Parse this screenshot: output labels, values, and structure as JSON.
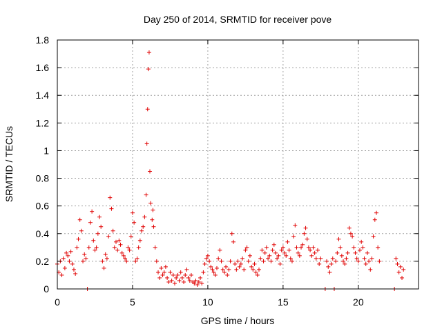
{
  "chart_data": {
    "type": "scatter",
    "title": "Day 250 of 2014, SRMTID for receiver pove",
    "xlabel": "GPS time / hours",
    "ylabel": "SRMTID / TECUs",
    "xlim": [
      0,
      24
    ],
    "ylim": [
      0,
      1.8
    ],
    "xticks": [
      0,
      5,
      10,
      15,
      20
    ],
    "xtick_labels": [
      "0",
      "5",
      "10",
      "15",
      "20"
    ],
    "yticks": [
      0,
      0.2,
      0.4,
      0.6,
      0.8,
      1.0,
      1.2,
      1.4,
      1.6,
      1.8
    ],
    "ytick_labels": [
      "0",
      "0.2",
      "0.4",
      "0.6",
      "0.8",
      "1",
      "1.2",
      "1.4",
      "1.6",
      "1.8"
    ],
    "grid": true,
    "marker": "+",
    "color": "#e00000",
    "series": [
      {
        "name": "SRMTID",
        "points": [
          [
            0.0,
            0.18
          ],
          [
            0.1,
            0.12
          ],
          [
            0.2,
            0.2
          ],
          [
            0.3,
            0.1
          ],
          [
            0.4,
            0.22
          ],
          [
            0.5,
            0.15
          ],
          [
            0.6,
            0.26
          ],
          [
            0.7,
            0.24
          ],
          [
            0.8,
            0.2
          ],
          [
            0.9,
            0.27
          ],
          [
            1.0,
            0.18
          ],
          [
            1.1,
            0.14
          ],
          [
            1.2,
            0.11
          ],
          [
            1.3,
            0.3
          ],
          [
            1.4,
            0.36
          ],
          [
            1.5,
            0.5
          ],
          [
            1.6,
            0.42
          ],
          [
            1.7,
            0.2
          ],
          [
            1.8,
            0.25
          ],
          [
            1.9,
            0.22
          ],
          [
            2.0,
            0.0
          ],
          [
            2.1,
            0.3
          ],
          [
            2.2,
            0.48
          ],
          [
            2.3,
            0.56
          ],
          [
            2.4,
            0.35
          ],
          [
            2.5,
            0.28
          ],
          [
            2.6,
            0.3
          ],
          [
            2.7,
            0.4
          ],
          [
            2.8,
            0.52
          ],
          [
            2.9,
            0.45
          ],
          [
            3.0,
            0.2
          ],
          [
            3.1,
            0.15
          ],
          [
            3.2,
            0.25
          ],
          [
            3.3,
            0.22
          ],
          [
            3.4,
            0.38
          ],
          [
            3.5,
            0.66
          ],
          [
            3.6,
            0.58
          ],
          [
            3.7,
            0.42
          ],
          [
            3.8,
            0.3
          ],
          [
            3.9,
            0.34
          ],
          [
            4.0,
            0.28
          ],
          [
            4.1,
            0.35
          ],
          [
            4.2,
            0.32
          ],
          [
            4.3,
            0.26
          ],
          [
            4.4,
            0.24
          ],
          [
            4.5,
            0.22
          ],
          [
            4.6,
            0.2
          ],
          [
            4.7,
            0.3
          ],
          [
            4.8,
            0.28
          ],
          [
            4.9,
            0.38
          ],
          [
            5.0,
            0.55
          ],
          [
            5.1,
            0.48
          ],
          [
            5.2,
            0.2
          ],
          [
            5.3,
            0.22
          ],
          [
            5.4,
            0.3
          ],
          [
            5.5,
            0.35
          ],
          [
            5.6,
            0.42
          ],
          [
            5.7,
            0.45
          ],
          [
            5.8,
            0.52
          ],
          [
            5.9,
            0.68
          ],
          [
            5.95,
            1.05
          ],
          [
            6.0,
            1.3
          ],
          [
            6.05,
            1.59
          ],
          [
            6.1,
            1.71
          ],
          [
            6.15,
            0.85
          ],
          [
            6.2,
            0.62
          ],
          [
            6.3,
            0.5
          ],
          [
            6.35,
            0.57
          ],
          [
            6.4,
            0.45
          ],
          [
            6.5,
            0.3
          ],
          [
            6.6,
            0.2
          ],
          [
            6.7,
            0.12
          ],
          [
            6.8,
            0.08
          ],
          [
            6.9,
            0.15
          ],
          [
            7.0,
            0.1
          ],
          [
            7.1,
            0.12
          ],
          [
            7.2,
            0.16
          ],
          [
            7.3,
            0.08
          ],
          [
            7.4,
            0.05
          ],
          [
            7.5,
            0.12
          ],
          [
            7.6,
            0.06
          ],
          [
            7.7,
            0.1
          ],
          [
            7.8,
            0.04
          ],
          [
            7.9,
            0.08
          ],
          [
            8.0,
            0.1
          ],
          [
            8.1,
            0.06
          ],
          [
            8.2,
            0.12
          ],
          [
            8.3,
            0.08
          ],
          [
            8.4,
            0.05
          ],
          [
            8.5,
            0.1
          ],
          [
            8.6,
            0.14
          ],
          [
            8.7,
            0.08
          ],
          [
            8.8,
            0.06
          ],
          [
            8.9,
            0.1
          ],
          [
            9.0,
            0.05
          ],
          [
            9.1,
            0.04
          ],
          [
            9.2,
            0.06
          ],
          [
            9.3,
            0.03
          ],
          [
            9.4,
            0.05
          ],
          [
            9.5,
            0.08
          ],
          [
            9.6,
            0.04
          ],
          [
            9.7,
            0.12
          ],
          [
            9.8,
            0.18
          ],
          [
            9.9,
            0.22
          ],
          [
            10.0,
            0.24
          ],
          [
            10.1,
            0.2
          ],
          [
            10.2,
            0.16
          ],
          [
            10.3,
            0.14
          ],
          [
            10.4,
            0.12
          ],
          [
            10.5,
            0.1
          ],
          [
            10.6,
            0.15
          ],
          [
            10.7,
            0.22
          ],
          [
            10.8,
            0.28
          ],
          [
            10.9,
            0.2
          ],
          [
            11.0,
            0.14
          ],
          [
            11.1,
            0.12
          ],
          [
            11.2,
            0.16
          ],
          [
            11.3,
            0.1
          ],
          [
            11.4,
            0.14
          ],
          [
            11.5,
            0.2
          ],
          [
            11.6,
            0.4
          ],
          [
            11.7,
            0.34
          ],
          [
            11.8,
            0.18
          ],
          [
            11.9,
            0.14
          ],
          [
            12.0,
            0.2
          ],
          [
            12.1,
            0.16
          ],
          [
            12.2,
            0.18
          ],
          [
            12.3,
            0.22
          ],
          [
            12.4,
            0.14
          ],
          [
            12.5,
            0.28
          ],
          [
            12.6,
            0.3
          ],
          [
            12.7,
            0.2
          ],
          [
            12.8,
            0.24
          ],
          [
            12.9,
            0.16
          ],
          [
            13.0,
            0.14
          ],
          [
            13.1,
            0.18
          ],
          [
            13.2,
            0.12
          ],
          [
            13.3,
            0.1
          ],
          [
            13.4,
            0.14
          ],
          [
            13.5,
            0.22
          ],
          [
            13.6,
            0.28
          ],
          [
            13.7,
            0.2
          ],
          [
            13.8,
            0.26
          ],
          [
            13.9,
            0.3
          ],
          [
            14.0,
            0.22
          ],
          [
            14.1,
            0.24
          ],
          [
            14.2,
            0.2
          ],
          [
            14.3,
            0.28
          ],
          [
            14.4,
            0.32
          ],
          [
            14.5,
            0.26
          ],
          [
            14.6,
            0.22
          ],
          [
            14.7,
            0.24
          ],
          [
            14.8,
            0.18
          ],
          [
            14.9,
            0.28
          ],
          [
            15.0,
            0.3
          ],
          [
            15.1,
            0.26
          ],
          [
            15.2,
            0.24
          ],
          [
            15.3,
            0.34
          ],
          [
            15.4,
            0.28
          ],
          [
            15.5,
            0.22
          ],
          [
            15.6,
            0.2
          ],
          [
            15.7,
            0.38
          ],
          [
            15.8,
            0.46
          ],
          [
            15.9,
            0.3
          ],
          [
            16.0,
            0.26
          ],
          [
            16.1,
            0.24
          ],
          [
            16.2,
            0.3
          ],
          [
            16.3,
            0.32
          ],
          [
            16.4,
            0.4
          ],
          [
            16.5,
            0.44
          ],
          [
            16.6,
            0.36
          ],
          [
            16.7,
            0.3
          ],
          [
            16.8,
            0.28
          ],
          [
            16.9,
            0.24
          ],
          [
            17.0,
            0.3
          ],
          [
            17.1,
            0.26
          ],
          [
            17.2,
            0.22
          ],
          [
            17.3,
            0.28
          ],
          [
            17.4,
            0.18
          ],
          [
            17.5,
            0.22
          ],
          [
            17.8,
            0.0
          ],
          [
            17.9,
            0.2
          ],
          [
            18.0,
            0.16
          ],
          [
            18.1,
            0.12
          ],
          [
            18.2,
            0.18
          ],
          [
            18.3,
            0.22
          ],
          [
            18.4,
            0.0
          ],
          [
            18.5,
            0.2
          ],
          [
            18.6,
            0.26
          ],
          [
            18.7,
            0.36
          ],
          [
            18.8,
            0.3
          ],
          [
            18.9,
            0.24
          ],
          [
            19.0,
            0.2
          ],
          [
            19.1,
            0.18
          ],
          [
            19.2,
            0.22
          ],
          [
            19.3,
            0.26
          ],
          [
            19.4,
            0.44
          ],
          [
            19.5,
            0.4
          ],
          [
            19.6,
            0.38
          ],
          [
            19.7,
            0.3
          ],
          [
            19.8,
            0.26
          ],
          [
            19.9,
            0.22
          ],
          [
            20.0,
            0.2
          ],
          [
            20.1,
            0.28
          ],
          [
            20.2,
            0.34
          ],
          [
            20.3,
            0.3
          ],
          [
            20.4,
            0.22
          ],
          [
            20.5,
            0.18
          ],
          [
            20.6,
            0.26
          ],
          [
            20.7,
            0.2
          ],
          [
            20.8,
            0.14
          ],
          [
            20.9,
            0.22
          ],
          [
            21.0,
            0.38
          ],
          [
            21.1,
            0.5
          ],
          [
            21.2,
            0.55
          ],
          [
            21.3,
            0.3
          ],
          [
            21.4,
            0.2
          ],
          [
            22.4,
            0.0
          ],
          [
            22.5,
            0.22
          ],
          [
            22.6,
            0.18
          ],
          [
            22.7,
            0.12
          ],
          [
            22.8,
            0.16
          ],
          [
            22.9,
            0.08
          ],
          [
            23.0,
            0.14
          ]
        ]
      }
    ]
  }
}
